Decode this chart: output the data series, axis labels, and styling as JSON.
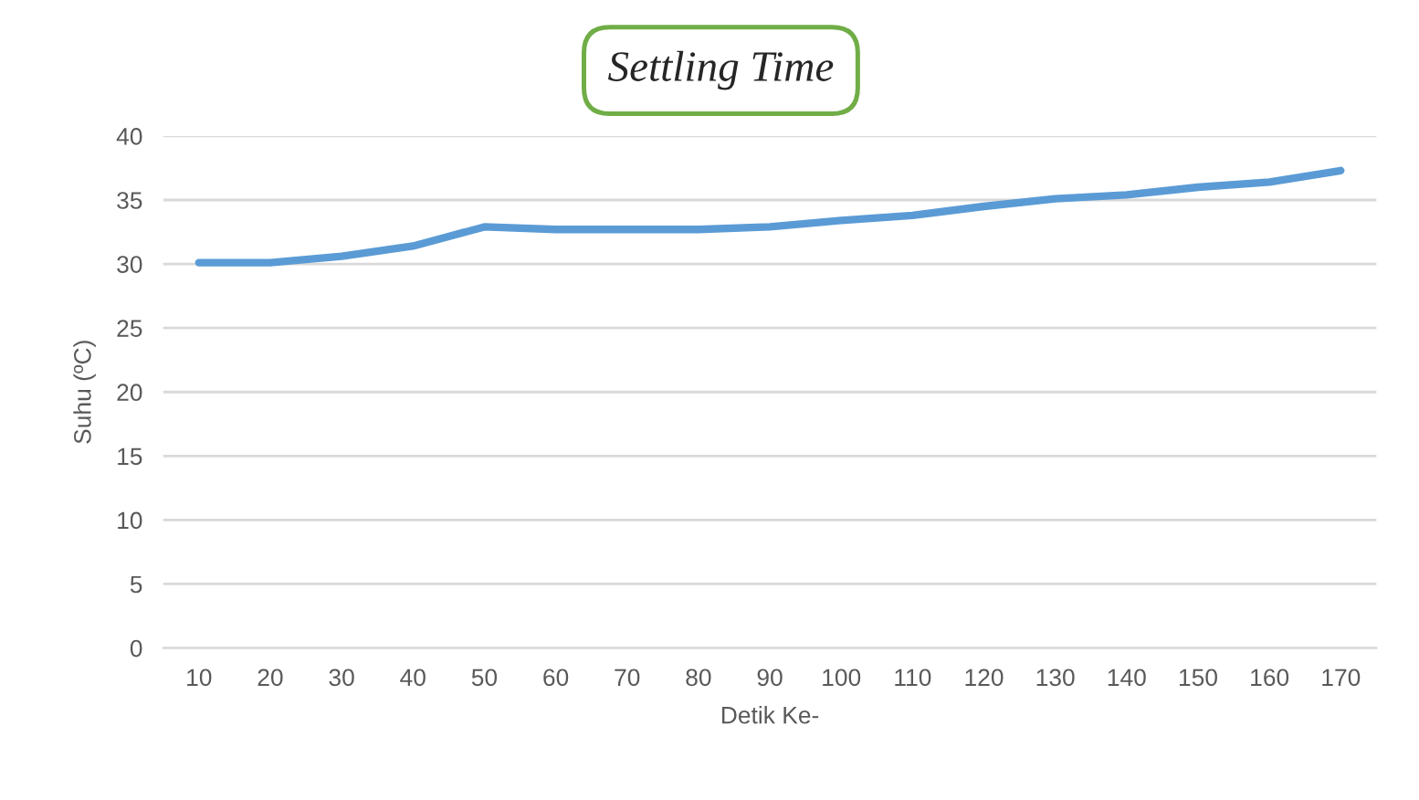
{
  "chart_data": {
    "type": "line",
    "title": "Settling Time",
    "xlabel": "Detik Ke-",
    "ylabel": "Suhu (ºC)",
    "categories": [
      "10",
      "20",
      "30",
      "40",
      "50",
      "60",
      "70",
      "80",
      "90",
      "100",
      "110",
      "120",
      "130",
      "140",
      "150",
      "160",
      "170"
    ],
    "series": [
      {
        "color": "#5b9bd5",
        "values": [
          30.1,
          30.1,
          30.6,
          31.4,
          32.9,
          32.7,
          32.7,
          32.7,
          32.9,
          33.4,
          33.8,
          34.5,
          35.1,
          35.4,
          36.0,
          36.4,
          37.3
        ]
      }
    ],
    "ylim": [
      0,
      40
    ],
    "yticks": [
      0,
      5,
      10,
      15,
      20,
      25,
      30,
      35,
      40
    ],
    "grid": "y",
    "legend": false,
    "marker": "none",
    "line_style": "solid"
  }
}
